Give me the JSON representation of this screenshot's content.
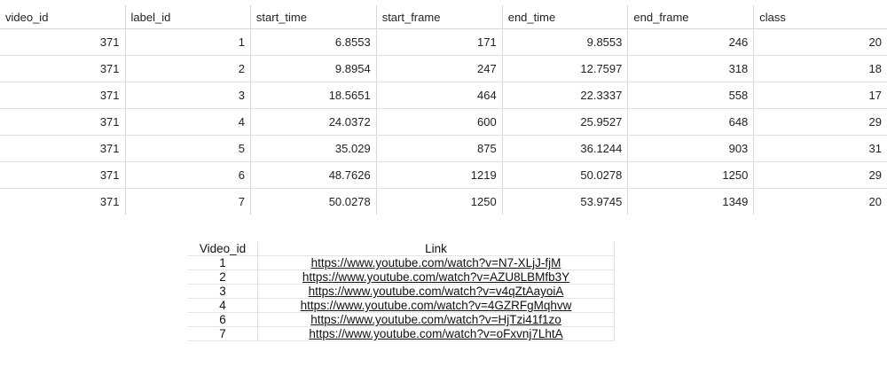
{
  "labels_table": {
    "headers": [
      "video_id",
      "label_id",
      "start_time",
      "start_frame",
      "end_time",
      "end_frame",
      "class"
    ],
    "rows": [
      [
        "371",
        "1",
        "6.8553",
        "171",
        "9.8553",
        "246",
        "20"
      ],
      [
        "371",
        "2",
        "9.8954",
        "247",
        "12.7597",
        "318",
        "18"
      ],
      [
        "371",
        "3",
        "18.5651",
        "464",
        "22.3337",
        "558",
        "17"
      ],
      [
        "371",
        "4",
        "24.0372",
        "600",
        "25.9527",
        "648",
        "29"
      ],
      [
        "371",
        "5",
        "35.029",
        "875",
        "36.1244",
        "903",
        "31"
      ],
      [
        "371",
        "6",
        "48.7626",
        "1219",
        "50.0278",
        "1250",
        "29"
      ],
      [
        "371",
        "7",
        "50.0278",
        "1250",
        "53.9745",
        "1349",
        "20"
      ]
    ]
  },
  "links_table": {
    "headers": [
      "Video_id",
      "Link"
    ],
    "rows": [
      [
        "1",
        "https://www.youtube.com/watch?v=N7-XLjJ-fjM"
      ],
      [
        "2",
        "https://www.youtube.com/watch?v=AZU8LBMfb3Y"
      ],
      [
        "3",
        "https://www.youtube.com/watch?v=v4qZtAayoiA"
      ],
      [
        "4",
        "https://www.youtube.com/watch?v=4GZRFgMqhvw"
      ],
      [
        "6",
        "https://www.youtube.com/watch?v=HjTzi41f1zo"
      ],
      [
        "7",
        "https://www.youtube.com/watch?v=oFxvnj7LhtA"
      ]
    ]
  }
}
